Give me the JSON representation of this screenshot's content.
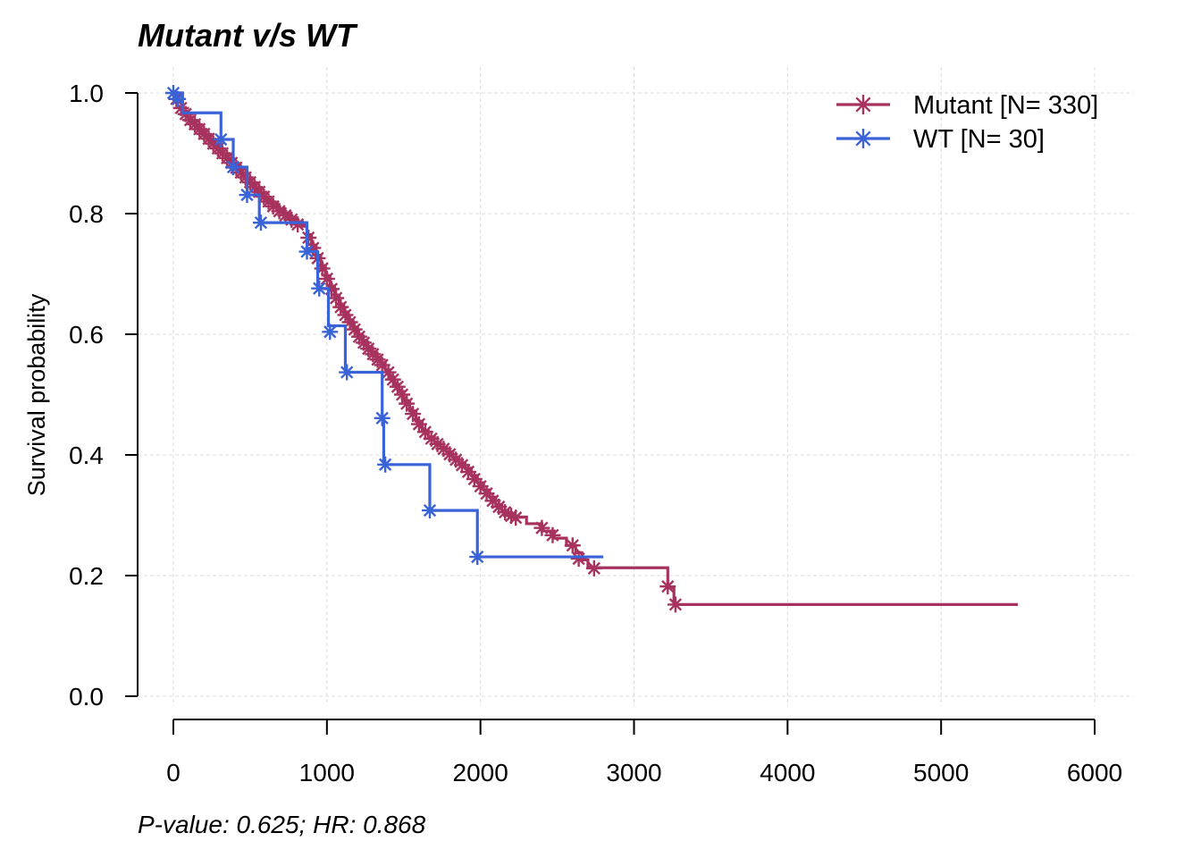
{
  "chart_data": {
    "type": "line",
    "title": "Mutant v/s WT",
    "xlabel": "",
    "ylabel": "Survival probability",
    "xlim": [
      0,
      6000
    ],
    "ylim": [
      0,
      1
    ],
    "x_ticks": [
      "0",
      "1000",
      "2000",
      "3000",
      "4000",
      "5000",
      "6000"
    ],
    "y_ticks": [
      "0.0",
      "0.2",
      "0.4",
      "0.6",
      "0.8",
      "1.0"
    ],
    "grid": true,
    "legend_position": "top-right",
    "footnote": "P-value: 0.625; HR: 0.868",
    "series": [
      {
        "name": "Mutant [N= 330]",
        "color": "#A8325E",
        "step_x": [
          0,
          30,
          60,
          90,
          120,
          150,
          180,
          210,
          240,
          270,
          300,
          330,
          360,
          390,
          420,
          450,
          480,
          510,
          540,
          570,
          600,
          640,
          680,
          720,
          760,
          800,
          840,
          870,
          900,
          930,
          960,
          990,
          1020,
          1050,
          1080,
          1110,
          1140,
          1170,
          1200,
          1230,
          1260,
          1290,
          1320,
          1350,
          1380,
          1410,
          1440,
          1470,
          1500,
          1540,
          1580,
          1620,
          1660,
          1700,
          1740,
          1780,
          1820,
          1860,
          1900,
          1940,
          1980,
          2020,
          2060,
          2100,
          2140,
          2180,
          2220,
          2300,
          2400,
          2480,
          2560,
          2620,
          2660,
          2700,
          2750,
          3220,
          3260
        ],
        "step_y": [
          1.0,
          0.985,
          0.97,
          0.96,
          0.952,
          0.944,
          0.936,
          0.928,
          0.92,
          0.912,
          0.904,
          0.896,
          0.888,
          0.88,
          0.872,
          0.864,
          0.856,
          0.848,
          0.84,
          0.832,
          0.824,
          0.816,
          0.808,
          0.8,
          0.793,
          0.786,
          0.779,
          0.765,
          0.748,
          0.731,
          0.714,
          0.697,
          0.68,
          0.665,
          0.65,
          0.637,
          0.624,
          0.612,
          0.6,
          0.59,
          0.58,
          0.571,
          0.562,
          0.553,
          0.541,
          0.529,
          0.517,
          0.505,
          0.49,
          0.473,
          0.456,
          0.44,
          0.43,
          0.421,
          0.413,
          0.405,
          0.396,
          0.387,
          0.378,
          0.366,
          0.354,
          0.342,
          0.33,
          0.318,
          0.308,
          0.3,
          0.297,
          0.286,
          0.274,
          0.262,
          0.25,
          0.238,
          0.226,
          0.214,
          0.213,
          0.18,
          0.152
        ],
        "last_x": 5500,
        "censor_x": [
          20,
          50,
          80,
          110,
          140,
          170,
          200,
          230,
          260,
          290,
          320,
          350,
          380,
          410,
          440,
          470,
          500,
          530,
          560,
          590,
          620,
          650,
          690,
          730,
          770,
          810,
          880,
          910,
          940,
          970,
          1000,
          1030,
          1060,
          1090,
          1120,
          1150,
          1180,
          1210,
          1240,
          1270,
          1300,
          1330,
          1360,
          1400,
          1430,
          1460,
          1490,
          1520,
          1560,
          1600,
          1640,
          1680,
          1720,
          1760,
          1800,
          1840,
          1880,
          1920,
          1960,
          2000,
          2040,
          2080,
          2120,
          2160,
          2200,
          2230,
          2400,
          2470,
          2600,
          2640,
          2740,
          3220,
          3270
        ],
        "censor_y": [
          0.99,
          0.975,
          0.965,
          0.955,
          0.948,
          0.94,
          0.932,
          0.924,
          0.916,
          0.908,
          0.9,
          0.892,
          0.884,
          0.876,
          0.868,
          0.86,
          0.852,
          0.844,
          0.836,
          0.828,
          0.82,
          0.812,
          0.804,
          0.797,
          0.79,
          0.782,
          0.76,
          0.743,
          0.726,
          0.709,
          0.692,
          0.675,
          0.66,
          0.645,
          0.632,
          0.62,
          0.608,
          0.596,
          0.586,
          0.576,
          0.567,
          0.558,
          0.549,
          0.537,
          0.525,
          0.513,
          0.5,
          0.485,
          0.468,
          0.451,
          0.438,
          0.427,
          0.418,
          0.41,
          0.401,
          0.392,
          0.383,
          0.372,
          0.36,
          0.348,
          0.336,
          0.324,
          0.314,
          0.305,
          0.299,
          0.296,
          0.279,
          0.267,
          0.25,
          0.228,
          0.212,
          0.182,
          0.152
        ]
      },
      {
        "name": "WT [N= 30]",
        "color": "#3A63D8",
        "step_x": [
          0,
          60,
          310,
          390,
          480,
          560,
          870,
          940,
          1010,
          1120,
          1360,
          1370,
          1670,
          1980
        ],
        "step_y": [
          1.0,
          0.967,
          0.923,
          0.877,
          0.831,
          0.785,
          0.737,
          0.676,
          0.614,
          0.537,
          0.461,
          0.384,
          0.308,
          0.231
        ],
        "last_x": 2800,
        "censor_x": [
          0,
          30,
          310,
          390,
          480,
          570,
          870,
          950,
          1020,
          1130,
          1360,
          1380,
          1670,
          1980
        ],
        "censor_y": [
          1.0,
          0.99,
          0.923,
          0.877,
          0.831,
          0.785,
          0.737,
          0.676,
          0.604,
          0.537,
          0.461,
          0.384,
          0.308,
          0.231
        ]
      }
    ]
  }
}
